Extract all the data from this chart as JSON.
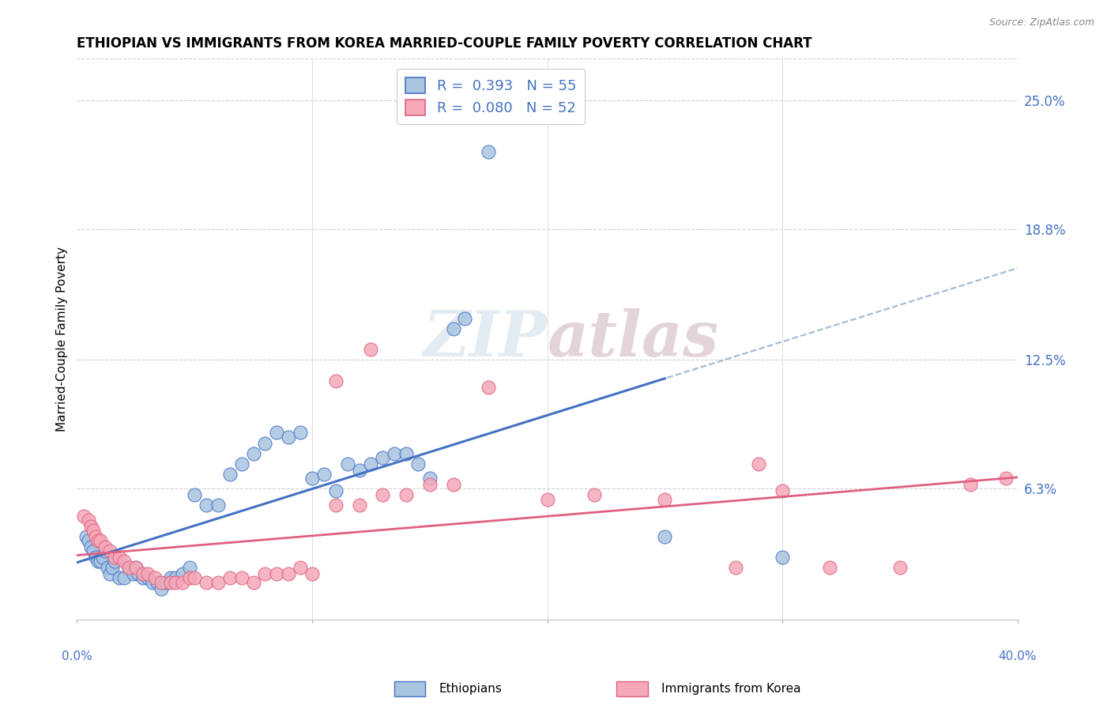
{
  "title": "ETHIOPIAN VS IMMIGRANTS FROM KOREA MARRIED-COUPLE FAMILY POVERTY CORRELATION CHART",
  "source": "Source: ZipAtlas.com",
  "ylabel": "Married-Couple Family Poverty",
  "ytick_labels": [
    "6.3%",
    "12.5%",
    "18.8%",
    "25.0%"
  ],
  "ytick_values": [
    0.063,
    0.125,
    0.188,
    0.25
  ],
  "xlim": [
    0.0,
    0.4
  ],
  "ylim": [
    0.0,
    0.27
  ],
  "watermark": "ZIPatlas",
  "ethiopians_color": "#a8c4e0",
  "korea_color": "#f4a8b8",
  "trend_ethiopians_color": "#4472c4",
  "trend_korea_color": "#e06080",
  "trend_dashed_color": "#a0b8d0",
  "background_color": "#ffffff",
  "grid_color": "#d0d0d0",
  "ethiopians_x": [
    0.004,
    0.005,
    0.006,
    0.007,
    0.008,
    0.009,
    0.01,
    0.011,
    0.012,
    0.013,
    0.014,
    0.015,
    0.016,
    0.018,
    0.02,
    0.022,
    0.024,
    0.025,
    0.026,
    0.028,
    0.03,
    0.032,
    0.034,
    0.036,
    0.038,
    0.04,
    0.042,
    0.045,
    0.048,
    0.05,
    0.055,
    0.06,
    0.065,
    0.07,
    0.075,
    0.08,
    0.085,
    0.09,
    0.095,
    0.1,
    0.105,
    0.11,
    0.115,
    0.12,
    0.125,
    0.13,
    0.135,
    0.14,
    0.145,
    0.15,
    0.16,
    0.165,
    0.175,
    0.25,
    0.3
  ],
  "ethiopians_y": [
    0.04,
    0.038,
    0.035,
    0.033,
    0.03,
    0.028,
    0.028,
    0.03,
    0.033,
    0.025,
    0.022,
    0.025,
    0.028,
    0.02,
    0.02,
    0.025,
    0.022,
    0.025,
    0.022,
    0.02,
    0.02,
    0.018,
    0.018,
    0.015,
    0.018,
    0.02,
    0.02,
    0.022,
    0.025,
    0.06,
    0.055,
    0.055,
    0.07,
    0.075,
    0.08,
    0.085,
    0.09,
    0.088,
    0.09,
    0.068,
    0.07,
    0.062,
    0.075,
    0.072,
    0.075,
    0.078,
    0.08,
    0.08,
    0.075,
    0.068,
    0.14,
    0.145,
    0.225,
    0.04,
    0.03
  ],
  "korea_x": [
    0.003,
    0.005,
    0.006,
    0.007,
    0.008,
    0.009,
    0.01,
    0.012,
    0.014,
    0.016,
    0.018,
    0.02,
    0.022,
    0.025,
    0.028,
    0.03,
    0.033,
    0.036,
    0.04,
    0.042,
    0.045,
    0.048,
    0.05,
    0.055,
    0.06,
    0.065,
    0.07,
    0.075,
    0.08,
    0.085,
    0.09,
    0.095,
    0.1,
    0.11,
    0.12,
    0.13,
    0.14,
    0.15,
    0.16,
    0.175,
    0.2,
    0.22,
    0.25,
    0.28,
    0.3,
    0.32,
    0.35,
    0.38,
    0.395,
    0.11,
    0.125,
    0.29
  ],
  "korea_y": [
    0.05,
    0.048,
    0.045,
    0.043,
    0.04,
    0.038,
    0.038,
    0.035,
    0.033,
    0.03,
    0.03,
    0.028,
    0.025,
    0.025,
    0.022,
    0.022,
    0.02,
    0.018,
    0.018,
    0.018,
    0.018,
    0.02,
    0.02,
    0.018,
    0.018,
    0.02,
    0.02,
    0.018,
    0.022,
    0.022,
    0.022,
    0.025,
    0.022,
    0.055,
    0.055,
    0.06,
    0.06,
    0.065,
    0.065,
    0.112,
    0.058,
    0.06,
    0.058,
    0.025,
    0.062,
    0.025,
    0.025,
    0.065,
    0.068,
    0.115,
    0.13,
    0.075
  ]
}
